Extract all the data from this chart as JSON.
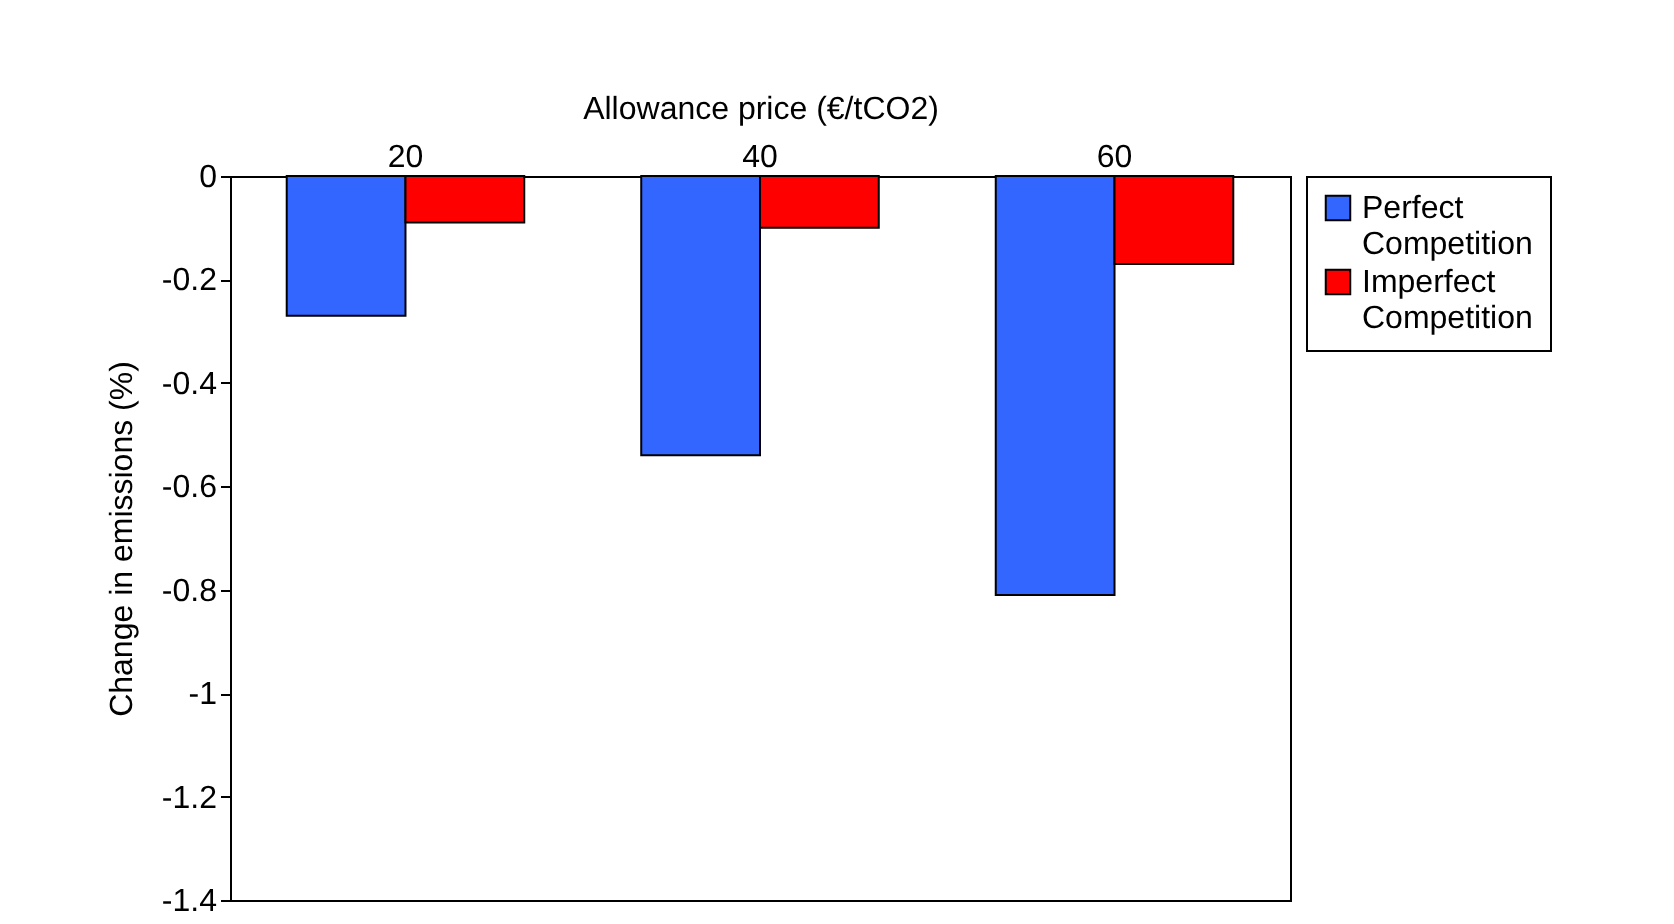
{
  "chart_data": {
    "type": "bar",
    "xlabel": "Allowance price (€/tCO2)",
    "ylabel": "Change in emissions (%)",
    "categories": [
      "20",
      "40",
      "60"
    ],
    "series": [
      {
        "name": "Perfect Competition",
        "color": "#3366ff",
        "values": [
          -0.27,
          -0.54,
          -0.81
        ]
      },
      {
        "name": "Imperfect Competition",
        "color": "#ff0000",
        "values": [
          -0.09,
          -0.1,
          -0.17
        ]
      }
    ],
    "ylim": [
      -1.4,
      0
    ],
    "yticks": [
      0,
      -0.2,
      -0.4,
      -0.6,
      -0.8,
      -1,
      -1.2,
      -1.4
    ],
    "grid": false,
    "legend": "right"
  }
}
